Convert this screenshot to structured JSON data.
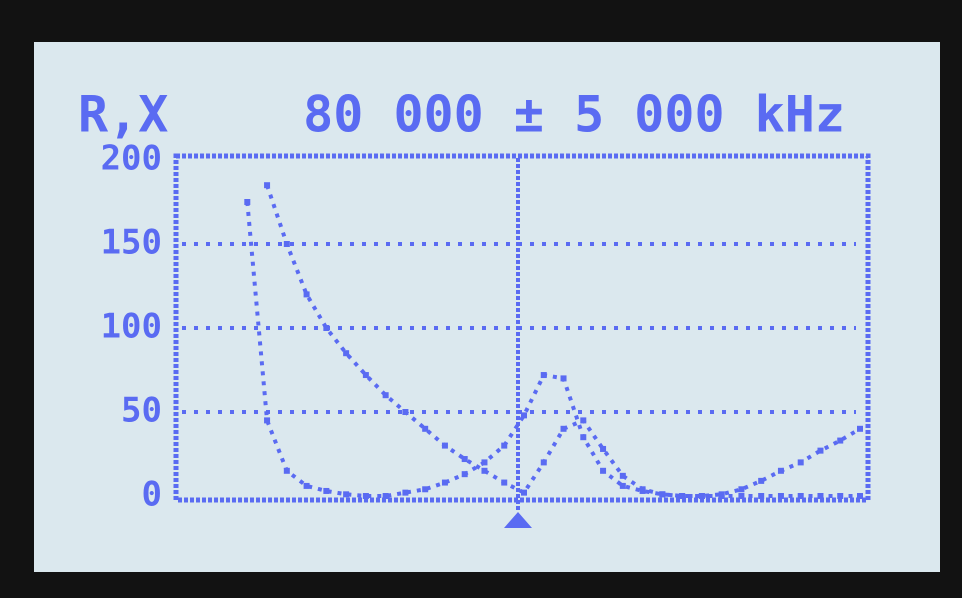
{
  "chart_data": {
    "type": "line",
    "title": "R,X",
    "subtitle": "80 000 ± 5 000 kHz",
    "categories": [
      null,
      null,
      null,
      null,
      null,
      null,
      null,
      null,
      null,
      null,
      null,
      null,
      null,
      null,
      null,
      null,
      null,
      null,
      null,
      null,
      null,
      null,
      null,
      null,
      null,
      null,
      null,
      null,
      null,
      null,
      null,
      null,
      null,
      null,
      null
    ],
    "series": [
      {
        "color": "#5a6bf2",
        "values": [
          null,
          null,
          null,
          175,
          45,
          15,
          6,
          3,
          1,
          0,
          0,
          2,
          4,
          8,
          13,
          20,
          30,
          48,
          72,
          70,
          35,
          15,
          6,
          3,
          1,
          0,
          0,
          1,
          4,
          9,
          15,
          20,
          27,
          33,
          40
        ]
      },
      {
        "color": "#5a6bf2",
        "values": [
          null,
          null,
          null,
          null,
          185,
          150,
          120,
          100,
          85,
          72,
          60,
          50,
          40,
          30,
          22,
          15,
          8,
          2,
          20,
          40,
          45,
          28,
          12,
          4,
          1,
          0,
          0,
          0,
          0,
          0,
          0,
          0,
          0,
          0,
          0
        ]
      }
    ],
    "ylim": [
      0,
      200
    ],
    "yticks": [
      0,
      50,
      100,
      150,
      200
    ],
    "grid": true
  }
}
